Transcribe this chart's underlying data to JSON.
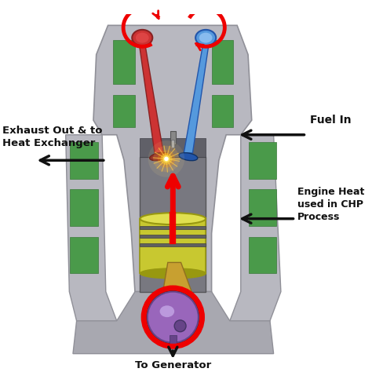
{
  "background_color": "#ffffff",
  "labels": {
    "exhaust": "Exhaust Out & to\nHeat Exchanger",
    "fuel": "Fuel In",
    "engine_heat": "Engine Heat\nused in CHP\nProcess",
    "generator": "To Generator"
  },
  "colors": {
    "engine_body": "#b8b8c0",
    "engine_mid": "#a8a8b0",
    "engine_dark": "#909098",
    "engine_inner": "#787880",
    "green_dark": "#3a7a3a",
    "green_mid": "#4a9a4a",
    "exhaust_valve": "#cc3333",
    "exhaust_dark": "#882222",
    "intake_valve": "#5599dd",
    "intake_dark": "#2255aa",
    "intake_light": "#88bbee",
    "piston_yellow": "#c8c830",
    "piston_dark": "#989810",
    "piston_light": "#e0e050",
    "conrod": "#c8a030",
    "conrod_dark": "#907020",
    "crankshaft": "#9966bb",
    "crank_dark": "#664488",
    "crank_light": "#bb99dd",
    "red_arrow": "#ee0000",
    "black": "#111111",
    "spark1": "#ffee88",
    "spark2": "#ffaa22",
    "spark3": "#ff6600"
  },
  "figsize": [
    4.74,
    4.88
  ],
  "dpi": 100
}
